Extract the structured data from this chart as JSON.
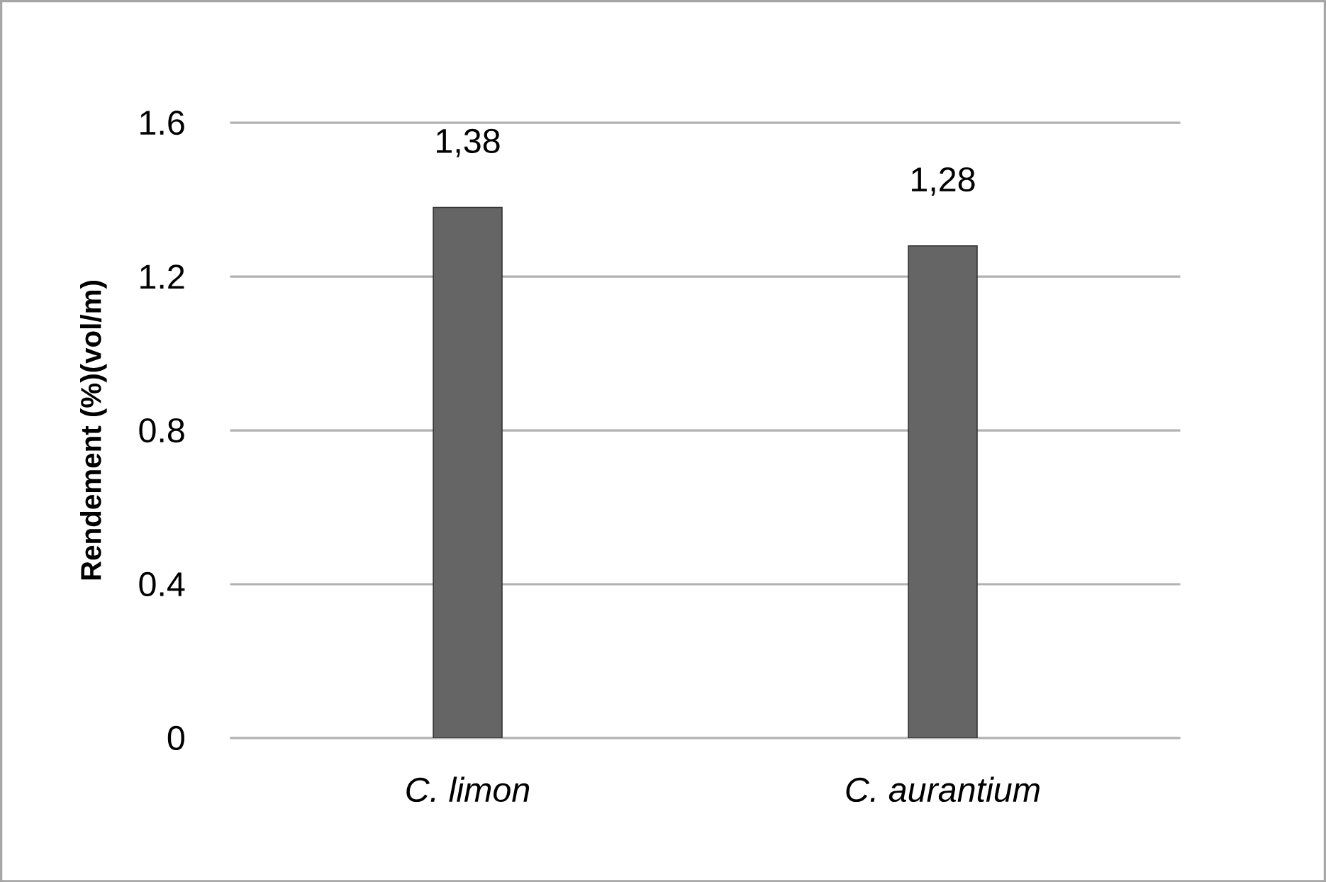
{
  "chart_data": {
    "type": "bar",
    "ylabel": "Rendement (%)(vol/m)",
    "categories": [
      "C. limon",
      "C. aurantium"
    ],
    "values": [
      1.38,
      1.28
    ],
    "value_labels": [
      "1,38",
      "1,28"
    ],
    "color": "#656565",
    "ylim": [
      0,
      1.6
    ],
    "yticks": [
      0,
      0.4,
      0.8,
      1.2,
      1.6
    ],
    "grid": "y"
  }
}
